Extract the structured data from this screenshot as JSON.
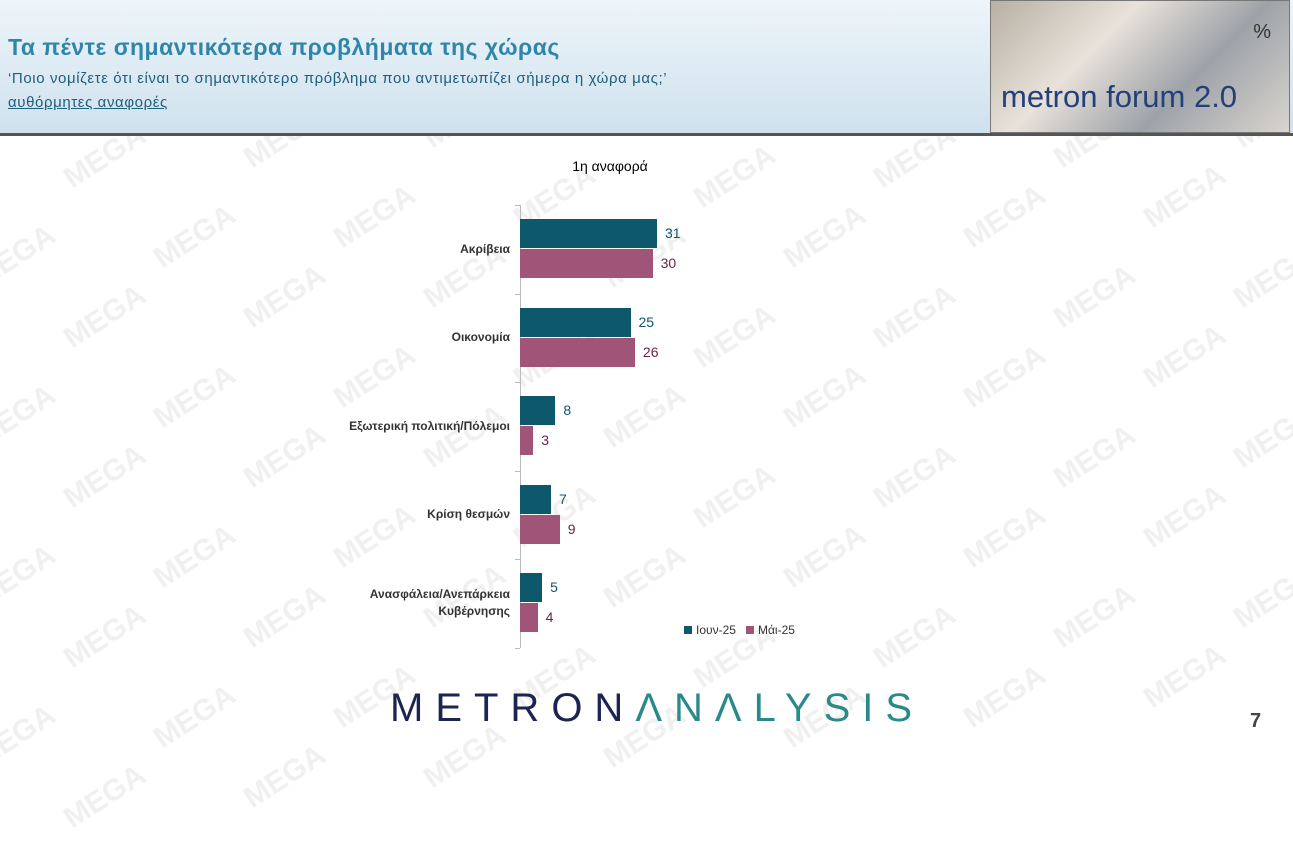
{
  "header": {
    "title": "Τα πέντε σημαντικότερα προβλήματα της χώρας",
    "subtitle": "‘Ποιο νομίζετε ότι είναι το σημαντικότερο πρόβλημα που αντιμετωπίζει σήμερα η χώρα μας;’",
    "note": "αυθόρμητες αναφορές",
    "logo_text": "metron forum 2.0",
    "logo_symbol": "%"
  },
  "watermark": "MEGA",
  "chart_data": {
    "type": "bar",
    "orientation": "horizontal",
    "title": "1η αναφορά",
    "categories": [
      "Ακρίβεια",
      "Οικονομία",
      "Εξωτερική πολιτική/Πόλεμοι",
      "Κρίση θεσμών",
      "Ανασφάλεια/Ανεπάρκεια Κυβέρνησης"
    ],
    "series": [
      {
        "name": "Ιουν-25",
        "color": "#0e586c",
        "label_color": "#0e586c",
        "values": [
          31,
          25,
          8,
          7,
          5
        ]
      },
      {
        "name": "Μάι-25",
        "color": "#a05478",
        "label_color": "#6e1f48",
        "values": [
          30,
          26,
          3,
          9,
          4
        ]
      }
    ],
    "xlim": [
      0,
      100
    ]
  },
  "footer": {
    "brand_a": "METRON",
    "brand_b": "ΛNΛLYSIS",
    "page": "7"
  }
}
